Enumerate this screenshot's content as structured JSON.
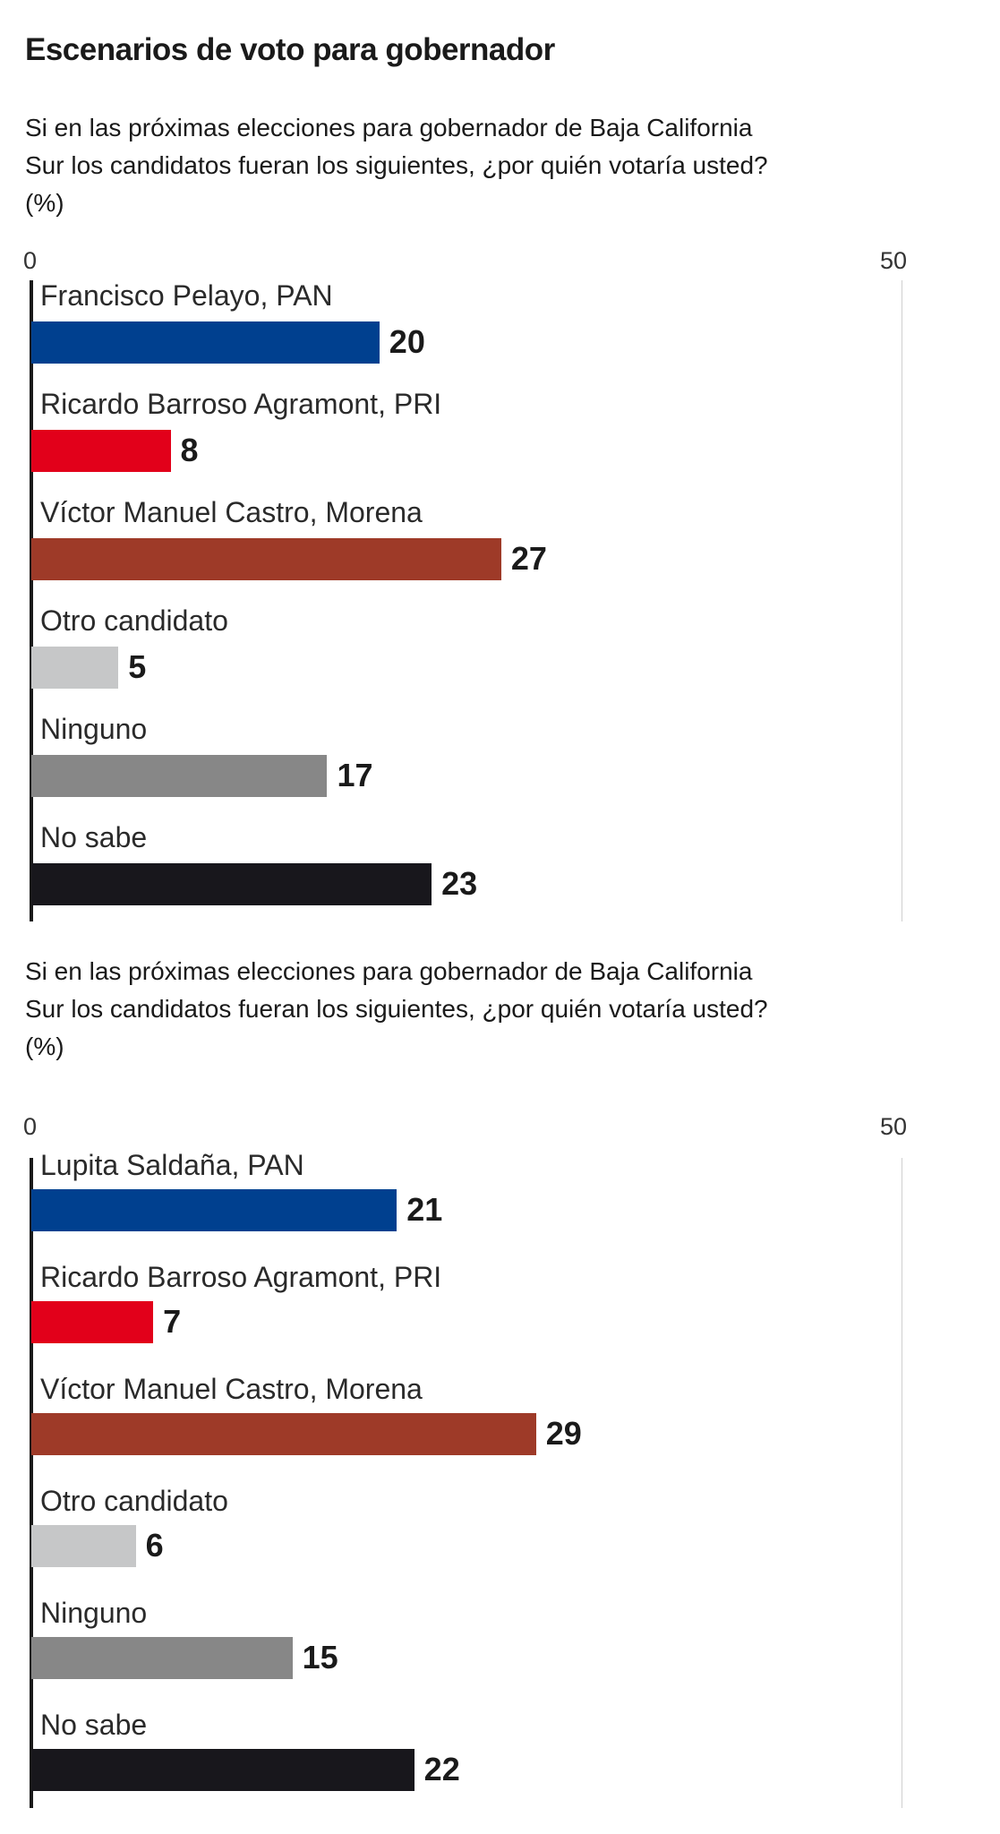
{
  "title": "Escenarios de voto para gobernador",
  "chart_data": [
    {
      "type": "bar",
      "orientation": "horizontal",
      "title": "Si en las próximas elecciones para gobernador de Baja California Sur los candidatos fueran los siguientes, ¿por quién votaría usted?",
      "subtitle_lines": [
        "Si en las próximas elecciones para gobernador de Baja California",
        "Sur los candidatos fueran los siguientes, ¿por quién votaría usted?",
        "(%)"
      ],
      "unit": "(%)",
      "xlim": [
        0,
        50
      ],
      "ticks": [
        "0",
        "50"
      ],
      "categories": [
        "Francisco Pelayo, PAN",
        "Ricardo Barroso Agramont, PRI",
        "Víctor Manuel Castro, Morena",
        "Otro candidato",
        "Ninguno",
        "No sabe"
      ],
      "values": [
        20,
        8,
        27,
        5,
        17,
        23
      ],
      "colors": [
        "#00408f",
        "#e2001a",
        "#9e3a28",
        "#c6c7c8",
        "#878787",
        "#18171c"
      ]
    },
    {
      "type": "bar",
      "orientation": "horizontal",
      "title": "Si en las próximas elecciones para gobernador de Baja California Sur los candidatos fueran los siguientes, ¿por quién votaría usted?",
      "subtitle_lines": [
        "Si en las próximas elecciones para gobernador de Baja California",
        "Sur los candidatos fueran los siguientes, ¿por quién votaría usted?",
        "(%)"
      ],
      "unit": "(%)",
      "xlim": [
        0,
        50
      ],
      "ticks": [
        "0",
        "50"
      ],
      "categories": [
        "Lupita Saldaña, PAN",
        "Ricardo Barroso Agramont, PRI",
        "Víctor Manuel Castro, Morena",
        "Otro candidato",
        "Ninguno",
        "No sabe"
      ],
      "values": [
        21,
        7,
        29,
        6,
        15,
        22
      ],
      "colors": [
        "#00408f",
        "#e2001a",
        "#9e3a28",
        "#c6c7c8",
        "#878787",
        "#18171c"
      ]
    }
  ]
}
